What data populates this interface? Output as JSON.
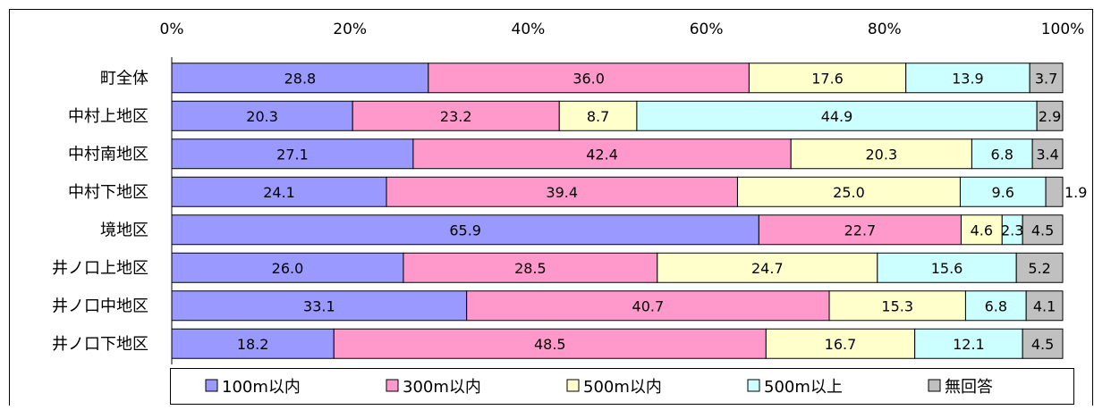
{
  "chart_data": {
    "type": "bar",
    "orientation": "horizontal",
    "stacked": true,
    "percent_stacked": true,
    "title": "",
    "xlabel": "",
    "ylabel": "",
    "xlim": [
      0,
      100
    ],
    "x_ticks": [
      "0%",
      "20%",
      "40%",
      "60%",
      "80%",
      "100%"
    ],
    "x_tick_values": [
      0,
      20,
      40,
      60,
      80,
      100
    ],
    "grid": false,
    "legend_position": "bottom",
    "categories": [
      "町全体",
      "中村上地区",
      "中村南地区",
      "中村下地区",
      "境地区",
      "井ノ口上地区",
      "井ノ口中地区",
      "井ノ口下地区"
    ],
    "series": [
      {
        "name": "100m以内",
        "color": "#9999ff",
        "values": [
          28.8,
          20.3,
          27.1,
          24.1,
          65.9,
          26.0,
          33.1,
          18.2
        ],
        "labels": [
          "28.8",
          "20.3",
          "27.1",
          "24.1",
          "65.9",
          "26.0",
          "33.1",
          "18.2"
        ]
      },
      {
        "name": "300m以内",
        "color": "#ff99cc",
        "values": [
          36.0,
          23.2,
          42.4,
          39.4,
          22.7,
          28.5,
          40.7,
          48.5
        ],
        "labels": [
          "36.0",
          "23.2",
          "42.4",
          "39.4",
          "22.7",
          "28.5",
          "40.7",
          "48.5"
        ]
      },
      {
        "name": "500m以内",
        "color": "#ffffcc",
        "values": [
          17.6,
          8.7,
          20.3,
          25.0,
          4.6,
          24.7,
          15.3,
          16.7
        ],
        "labels": [
          "17.6",
          "8.7",
          "20.3",
          "25.0",
          "4.6",
          "24.7",
          "15.3",
          "16.7"
        ]
      },
      {
        "name": "500m以上",
        "color": "#ccffff",
        "values": [
          13.9,
          44.9,
          6.8,
          9.6,
          2.3,
          15.6,
          6.8,
          12.1
        ],
        "labels": [
          "13.9",
          "44.9",
          "6.8",
          "9.6",
          "2.3",
          "15.6",
          "6.8",
          "12.1"
        ]
      },
      {
        "name": "無回答",
        "color": "#c0c0c0",
        "values": [
          3.7,
          2.9,
          3.4,
          1.9,
          4.5,
          5.2,
          4.1,
          4.5
        ],
        "labels": [
          "3.7",
          "2.9",
          "3.4",
          "1.9",
          "4.5",
          "5.2",
          "4.1",
          "4.5"
        ]
      }
    ]
  }
}
